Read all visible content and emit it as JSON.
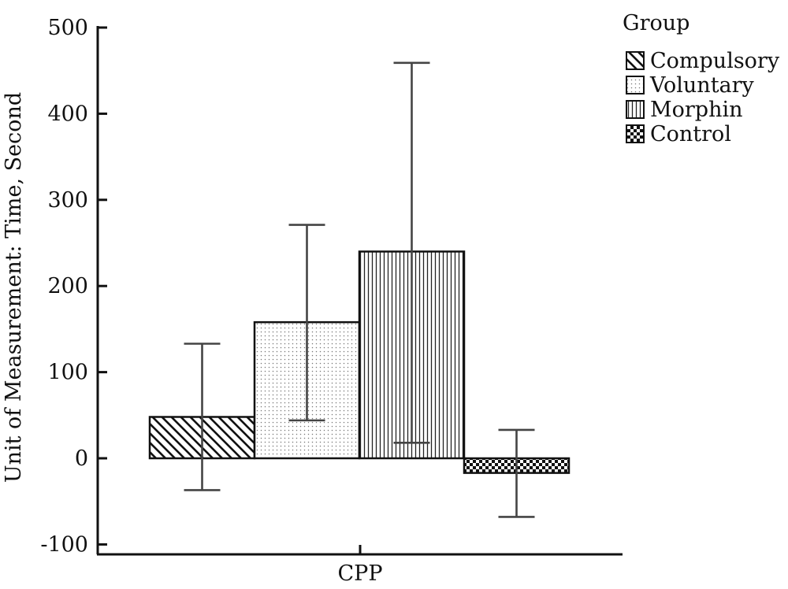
{
  "chart_data": {
    "type": "bar",
    "categories": [
      "CPP"
    ],
    "series": [
      {
        "name": "Compulsory",
        "value": 48,
        "error_low": -37,
        "error_high": 133,
        "pattern": "diagonal-hatch"
      },
      {
        "name": "Voluntary",
        "value": 158,
        "error_low": 44,
        "error_high": 271,
        "pattern": "dots"
      },
      {
        "name": "Morphin",
        "value": 240,
        "error_low": 18,
        "error_high": 459,
        "pattern": "vertical-lines"
      },
      {
        "name": "Control",
        "value": -17,
        "error_low": -68,
        "error_high": 33,
        "pattern": "checkerboard"
      }
    ],
    "ylabel": "Unit of Measurement: Time, Second",
    "xlabel": "",
    "ylim": [
      -110,
      500
    ],
    "yticks": [
      500,
      400,
      300,
      200,
      100,
      0,
      -100
    ],
    "ytick_labels": [
      "500",
      "400",
      "300",
      "200",
      "100",
      "0",
      "-100"
    ],
    "legend_title": "Group",
    "legend_position": "top-right",
    "grid": false
  }
}
